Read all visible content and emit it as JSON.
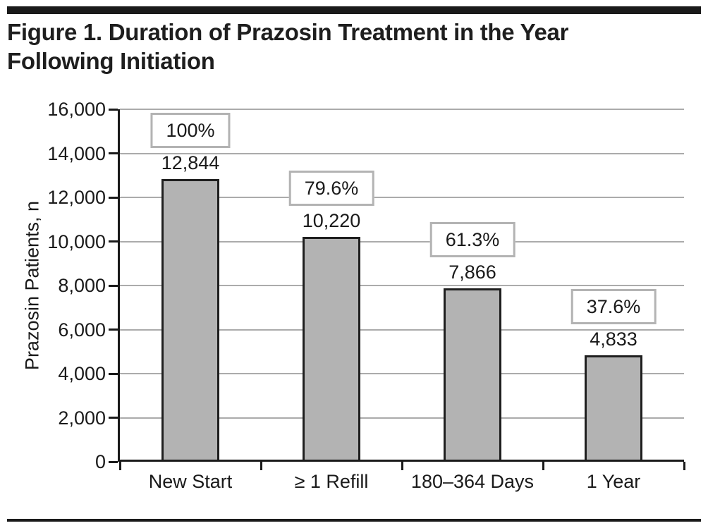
{
  "page": {
    "kind": "journal-figure"
  },
  "chart_data": {
    "type": "bar",
    "title": "Figure 1. Duration of Prazosin Treatment in the Year Following Initiation",
    "categories": [
      "New Start",
      "≥ 1 Refill",
      "180–364 Days",
      "1 Year"
    ],
    "values": [
      12844,
      10220,
      7866,
      4833
    ],
    "value_labels": [
      "12,844",
      "10,220",
      "7,866",
      "4,833"
    ],
    "percent_labels": [
      "100%",
      "79.6%",
      "61.3%",
      "37.6%"
    ],
    "xlabel": "",
    "ylabel": "Prazosin Patients, n",
    "ylim": [
      0,
      16000
    ],
    "ytick_step": 2000,
    "ytick_labels": [
      "0",
      "2,000",
      "4,000",
      "6,000",
      "8,000",
      "10,000",
      "12,000",
      "14,000",
      "16,000"
    ],
    "grid": "horizontal",
    "legend": "none",
    "colors": {
      "bar_fill": "#b3b3b3",
      "bar_border": "#1f1f1f",
      "gridline": "#ababab",
      "axis": "#1a1a1a",
      "percent_box_border": "#b3b3b3",
      "text": "#1a1a1a",
      "rule": "#1a1a1a"
    }
  }
}
